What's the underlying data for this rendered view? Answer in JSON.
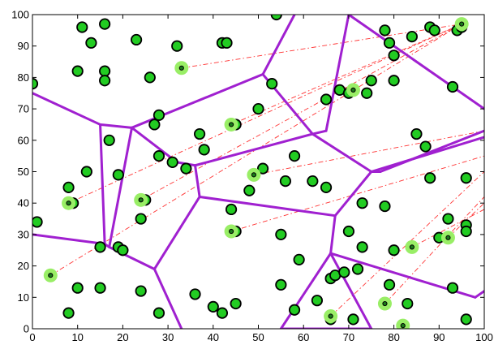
{
  "chart_data": {
    "type": "scatter",
    "title": "",
    "xlabel": "",
    "ylabel": "",
    "xlim": [
      0,
      100
    ],
    "ylim": [
      0,
      100
    ],
    "xticks": [
      0,
      10,
      20,
      30,
      40,
      50,
      60,
      70,
      80,
      90,
      100
    ],
    "yticks": [
      0,
      10,
      20,
      30,
      40,
      50,
      60,
      70,
      80,
      90,
      100
    ],
    "grid": false,
    "colors": {
      "point_fill": "#22cc22",
      "point_edge": "#000000",
      "highlight_halo": "#99ee66",
      "voronoi_edge": "#a020d0",
      "link_line": "#ff3030",
      "axis": "#000000"
    },
    "points": [
      [
        0,
        78
      ],
      [
        1,
        34
      ],
      [
        8,
        5
      ],
      [
        8,
        45
      ],
      [
        9,
        40
      ],
      [
        10,
        82
      ],
      [
        10,
        13
      ],
      [
        11,
        96
      ],
      [
        12,
        50
      ],
      [
        13,
        91
      ],
      [
        15,
        13
      ],
      [
        15,
        26
      ],
      [
        16,
        97
      ],
      [
        16,
        82
      ],
      [
        16,
        79
      ],
      [
        17,
        60
      ],
      [
        19,
        49
      ],
      [
        19,
        26
      ],
      [
        20,
        25
      ],
      [
        23,
        92
      ],
      [
        24,
        12
      ],
      [
        24,
        35
      ],
      [
        25,
        41
      ],
      [
        26,
        80
      ],
      [
        27,
        65
      ],
      [
        28,
        68
      ],
      [
        28,
        5
      ],
      [
        28,
        55
      ],
      [
        31,
        53
      ],
      [
        32,
        90
      ],
      [
        33,
        83
      ],
      [
        34,
        51
      ],
      [
        36,
        11
      ],
      [
        37,
        62
      ],
      [
        38,
        57
      ],
      [
        40,
        7
      ],
      [
        42,
        91
      ],
      [
        42,
        5
      ],
      [
        43,
        91
      ],
      [
        44,
        38
      ],
      [
        45,
        65
      ],
      [
        45,
        8
      ],
      [
        45,
        31
      ],
      [
        48,
        44
      ],
      [
        49,
        49
      ],
      [
        50,
        70
      ],
      [
        51,
        51
      ],
      [
        53,
        78
      ],
      [
        54,
        100
      ],
      [
        55,
        30
      ],
      [
        55,
        14
      ],
      [
        56,
        47
      ],
      [
        58,
        6
      ],
      [
        58,
        55
      ],
      [
        59,
        22
      ],
      [
        62,
        47
      ],
      [
        63,
        9
      ],
      [
        65,
        45
      ],
      [
        65,
        73
      ],
      [
        66,
        16
      ],
      [
        66,
        3
      ],
      [
        67,
        17
      ],
      [
        68,
        76
      ],
      [
        69,
        18
      ],
      [
        70,
        75
      ],
      [
        70,
        31
      ],
      [
        71,
        76
      ],
      [
        71,
        3
      ],
      [
        72,
        19
      ],
      [
        73,
        40
      ],
      [
        73,
        26
      ],
      [
        74,
        75
      ],
      [
        75,
        79
      ],
      [
        78,
        39
      ],
      [
        78,
        95
      ],
      [
        79,
        14
      ],
      [
        79,
        91
      ],
      [
        80,
        25
      ],
      [
        80,
        87
      ],
      [
        80,
        79
      ],
      [
        82,
        1
      ],
      [
        83,
        8
      ],
      [
        84,
        93
      ],
      [
        84,
        26
      ],
      [
        85,
        62
      ],
      [
        87,
        58
      ],
      [
        88,
        96
      ],
      [
        88,
        48
      ],
      [
        89,
        95
      ],
      [
        90,
        29
      ],
      [
        92,
        35
      ],
      [
        93,
        77
      ],
      [
        93,
        13
      ],
      [
        94,
        95
      ],
      [
        95,
        96
      ],
      [
        96,
        33
      ],
      [
        96,
        3
      ],
      [
        96,
        48
      ],
      [
        96,
        31
      ]
    ],
    "highlighted": [
      [
        4,
        17
      ],
      [
        8,
        40
      ],
      [
        24,
        41
      ],
      [
        33,
        83
      ],
      [
        44,
        65
      ],
      [
        44,
        31
      ],
      [
        49,
        49
      ],
      [
        66,
        4
      ],
      [
        71,
        76
      ],
      [
        78,
        8
      ],
      [
        82,
        1
      ],
      [
        84,
        26
      ],
      [
        92,
        29
      ],
      [
        95,
        97
      ]
    ],
    "voronoi_edges": [
      [
        [
          0,
          75
        ],
        [
          15,
          65
        ]
      ],
      [
        [
          15,
          65
        ],
        [
          22,
          64
        ]
      ],
      [
        [
          15,
          65
        ],
        [
          16,
          27
        ]
      ],
      [
        [
          0,
          30
        ],
        [
          16,
          27
        ]
      ],
      [
        [
          16,
          27
        ],
        [
          17,
          26
        ]
      ],
      [
        [
          17,
          26
        ],
        [
          27,
          19
        ]
      ],
      [
        [
          17,
          26
        ],
        [
          22,
          64
        ]
      ],
      [
        [
          22,
          64
        ],
        [
          51,
          81
        ]
      ],
      [
        [
          51,
          81
        ],
        [
          58,
          100
        ]
      ],
      [
        [
          51,
          81
        ],
        [
          62,
          62
        ]
      ],
      [
        [
          22,
          64
        ],
        [
          32,
          53
        ]
      ],
      [
        [
          32,
          53
        ],
        [
          36,
          52
        ]
      ],
      [
        [
          36,
          52
        ],
        [
          37,
          42
        ]
      ],
      [
        [
          36,
          52
        ],
        [
          62,
          62
        ]
      ],
      [
        [
          62,
          62
        ],
        [
          75,
          50
        ]
      ],
      [
        [
          75,
          50
        ],
        [
          100,
          61
        ]
      ],
      [
        [
          75,
          50
        ],
        [
          67,
          36
        ]
      ],
      [
        [
          37,
          42
        ],
        [
          67,
          36
        ]
      ],
      [
        [
          67,
          36
        ],
        [
          66,
          24
        ]
      ],
      [
        [
          27,
          19
        ],
        [
          37,
          42
        ]
      ],
      [
        [
          27,
          19
        ],
        [
          33,
          0
        ]
      ],
      [
        [
          66,
          24
        ],
        [
          55,
          0
        ]
      ],
      [
        [
          66,
          24
        ],
        [
          75,
          0
        ]
      ],
      [
        [
          66,
          24
        ],
        [
          98,
          10
        ]
      ],
      [
        [
          98,
          10
        ],
        [
          100,
          12
        ]
      ],
      [
        [
          75,
          50
        ],
        [
          77,
          50
        ]
      ],
      [
        [
          77,
          50
        ],
        [
          100,
          63
        ]
      ],
      [
        [
          62,
          62
        ],
        [
          65,
          63
        ]
      ],
      [
        [
          65,
          63
        ],
        [
          70,
          100
        ]
      ],
      [
        [
          70,
          100
        ],
        [
          100,
          70
        ]
      ],
      [
        [
          55,
          0
        ],
        [
          75,
          0
        ]
      ]
    ],
    "link_lines": [
      [
        [
          4,
          17
        ],
        [
          95,
          97
        ]
      ],
      [
        [
          8,
          40
        ],
        [
          95,
          97
        ]
      ],
      [
        [
          24,
          41
        ],
        [
          95,
          97
        ]
      ],
      [
        [
          33,
          83
        ],
        [
          95,
          97
        ]
      ],
      [
        [
          44,
          65
        ],
        [
          95,
          97
        ]
      ],
      [
        [
          49,
          49
        ],
        [
          100,
          63
        ]
      ],
      [
        [
          44,
          31
        ],
        [
          100,
          55
        ]
      ],
      [
        [
          66,
          4
        ],
        [
          100,
          50
        ]
      ],
      [
        [
          78,
          8
        ],
        [
          100,
          42
        ]
      ],
      [
        [
          84,
          26
        ],
        [
          100,
          38
        ]
      ],
      [
        [
          92,
          29
        ],
        [
          100,
          40
        ]
      ]
    ]
  }
}
